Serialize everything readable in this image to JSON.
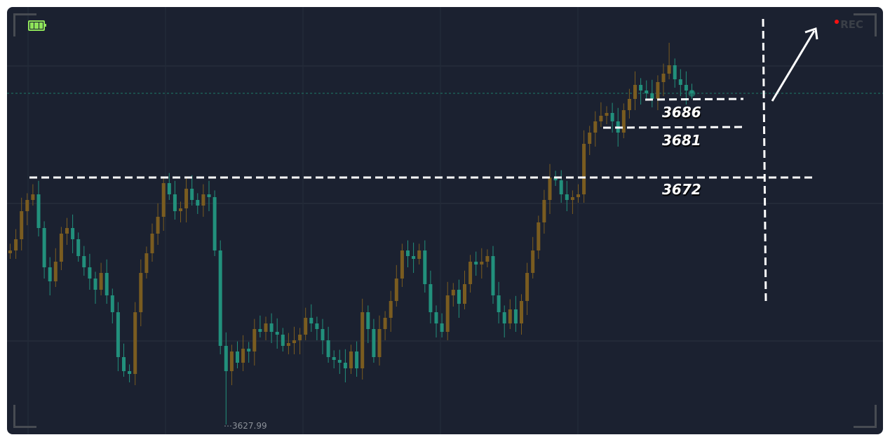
{
  "chart_data": {
    "type": "candlestick",
    "first_open": 3658.5,
    "close": [
      3659,
      3661,
      3666,
      3668,
      3669,
      3663,
      3656,
      3653.5,
      3657,
      3662,
      3663,
      3661,
      3658,
      3656,
      3654,
      3652,
      3655,
      3651,
      3648,
      3640,
      3637.5,
      3637,
      3648,
      3655,
      3658.5,
      3662,
      3665,
      3671,
      3669,
      3666,
      3666.5,
      3670,
      3668,
      3667,
      3669,
      3668.5,
      3659,
      3642,
      3637.5,
      3641,
      3639,
      3641.5,
      3641,
      3645,
      3644.5,
      3646,
      3644.5,
      3644,
      3642,
      3642.5,
      3643,
      3644,
      3647,
      3646,
      3645,
      3643,
      3640,
      3639.5,
      3639,
      3638,
      3641,
      3638,
      3648,
      3645,
      3640,
      3645,
      3647,
      3650,
      3654,
      3659,
      3658,
      3657.5,
      3659,
      3653,
      3648,
      3646,
      3644.5,
      3651,
      3652,
      3649.5,
      3653,
      3657,
      3656.5,
      3657,
      3658,
      3651,
      3648,
      3646,
      3648.5,
      3646,
      3650,
      3655,
      3659,
      3664,
      3668,
      3672,
      3671.5,
      3669,
      3668,
      3668.5,
      3669,
      3678,
      3680,
      3682,
      3683,
      3683.5,
      3682,
      3680,
      3684,
      3686,
      3688.5,
      3687.5,
      3687,
      3686,
      3689,
      3690.5,
      3692,
      3689.5,
      3688.5,
      3687.5,
      3687
    ],
    "extremes": {
      "low": 3627.99,
      "high": 3696
    },
    "current_price": 3687,
    "up_color": "#7a5c20",
    "down_color": "#22907c",
    "grid": true,
    "levels": [
      {
        "label": "3686",
        "value": 3686
      },
      {
        "label": "3681",
        "value": 3681
      },
      {
        "label": "3672",
        "value": 3672
      }
    ],
    "low_label": "3627.99"
  },
  "overlay": {
    "rec_label": "REC",
    "battery_icon": "battery-full-icon",
    "rec_color": "#ff1010"
  }
}
